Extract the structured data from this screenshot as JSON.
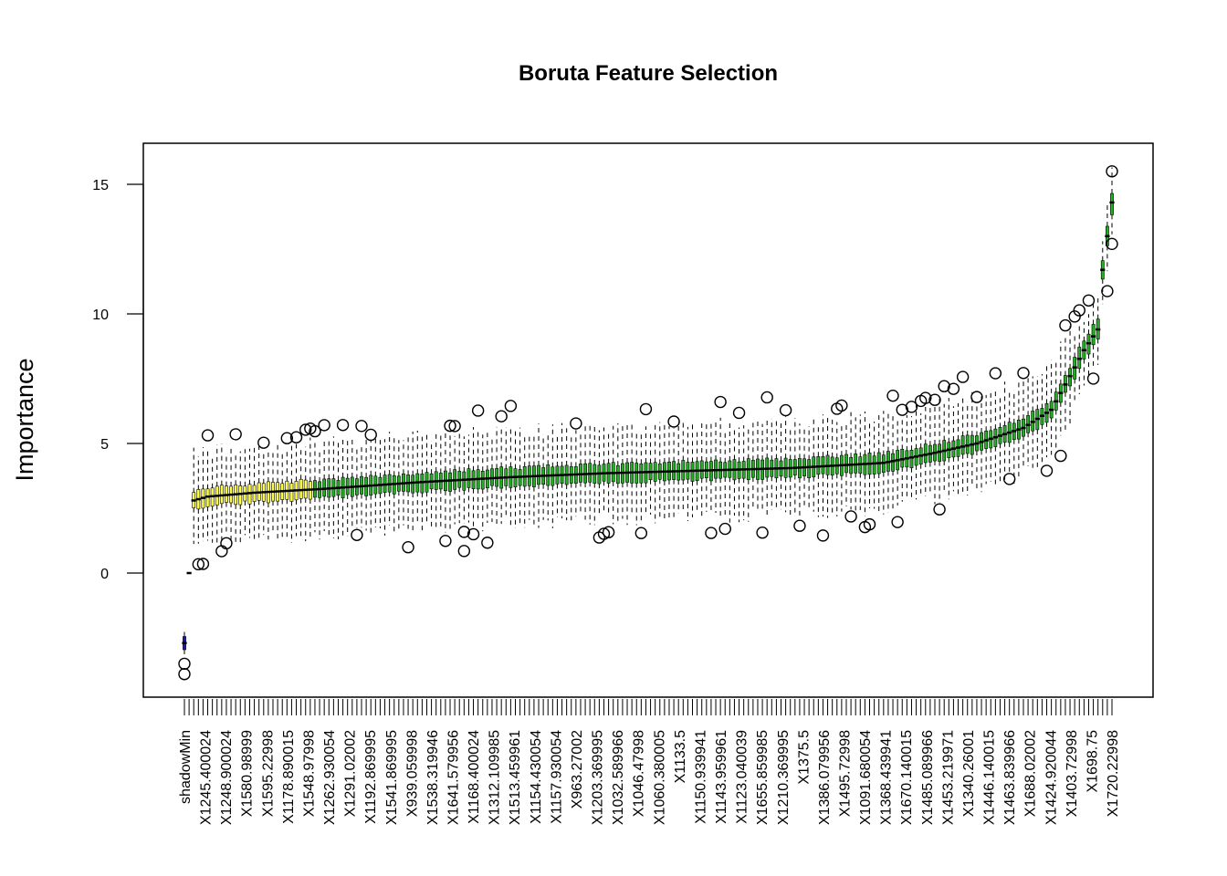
{
  "chart_data": {
    "type": "box",
    "title": "Boruta Feature Selection",
    "xlabel": "",
    "ylabel": "Importance",
    "ylim": [
      -4.6,
      16.2
    ],
    "y_ticks": [
      0,
      5,
      10,
      15
    ],
    "grid": false,
    "legend": "none",
    "n_features": 200,
    "colors": {
      "confirmed": "#22b022",
      "tentative": "#ffff44",
      "shadow": "#1a1aa8",
      "line": "#000000",
      "background": "#ffffff"
    },
    "x_tick_labels": [
      "shadowMin",
      "X1245.400024",
      "X1248.900024",
      "X1580.98999",
      "X1595.22998",
      "X1178.890015",
      "X1548.97998",
      "X1262.930054",
      "X1291.02002",
      "X1192.869995",
      "X1541.869995",
      "X939.059998",
      "X1538.319946",
      "X1641.579956",
      "X1168.400024",
      "X1312.109985",
      "X1513.459961",
      "X1154.430054",
      "X1157.930054",
      "X963.27002",
      "X1203.369995",
      "X1032.589966",
      "X1046.47998",
      "X1060.380005",
      "X1133.5",
      "X1150.939941",
      "X1143.959961",
      "X1123.040039",
      "X1655.859985",
      "X1210.369995",
      "X1375.5",
      "X1386.079956",
      "X1495.72998",
      "X1091.680054",
      "X1368.439941",
      "X1670.140015",
      "X1485.089966",
      "X1453.219971",
      "X1340.26001",
      "X1446.140015",
      "X1463.839966",
      "X1688.02002",
      "X1424.920044",
      "X1403.72998",
      "X1698.75",
      "X1720.22998"
    ],
    "medians_anchor": [
      [
        0,
        -2.7
      ],
      [
        1,
        0.0
      ],
      [
        2,
        2.8
      ],
      [
        5,
        2.95
      ],
      [
        15,
        3.1
      ],
      [
        30,
        3.25
      ],
      [
        50,
        3.5
      ],
      [
        70,
        3.7
      ],
      [
        90,
        3.85
      ],
      [
        110,
        3.95
      ],
      [
        130,
        4.05
      ],
      [
        150,
        4.25
      ],
      [
        160,
        4.6
      ],
      [
        170,
        5.0
      ],
      [
        180,
        5.6
      ],
      [
        186,
        6.3
      ],
      [
        190,
        7.6
      ],
      [
        193,
        8.6
      ],
      [
        196,
        9.4
      ],
      [
        197,
        11.7
      ],
      [
        198,
        13.0
      ],
      [
        199,
        14.3
      ]
    ],
    "notable_outliers": [
      {
        "position": 0,
        "value": -3.5
      },
      {
        "position": 0,
        "value": -3.9
      },
      {
        "position": 60,
        "value": 0.85
      },
      {
        "position": 9,
        "value": 1.15
      },
      {
        "position": 199,
        "value": 15.5
      },
      {
        "position": 199,
        "value": 12.7
      }
    ]
  }
}
